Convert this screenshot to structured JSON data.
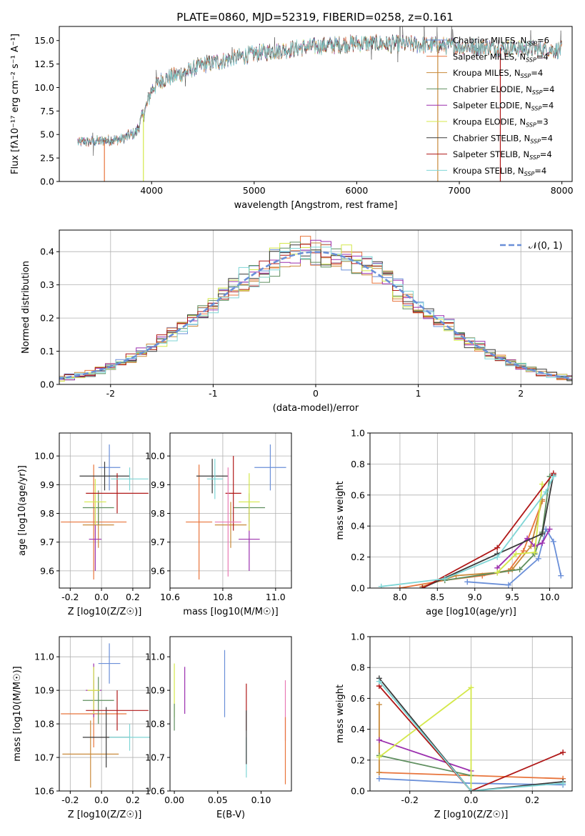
{
  "figure_title": "PLATE=0860, MJD=52319, FIBERID=0258, z=0.161",
  "colors": {
    "Chabrier MILES": "#6a8fd8",
    "Salpeter MILES": "#e8743b",
    "Kroupa MILES": "#c98a3a",
    "Chabrier ELODIE": "#5f8f5f",
    "Salpeter ELODIE": "#9b2fae",
    "Kroupa ELODIE": "#d4e84a",
    "Chabrier STELIB": "#3a3a3a",
    "Salpeter STELIB": "#b01818",
    "Kroupa STELIB": "#7fd6d6",
    "pink": "#e87ab4",
    "grey": "#888888"
  },
  "chart_data": [
    {
      "type": "line",
      "title": "PLATE=0860, MJD=52319, FIBERID=0258, z=0.161",
      "xlabel": "wavelength [Angstrom, rest frame]",
      "ylabel": "Flux [fλ10⁻¹⁷ erg cm⁻² s⁻¹ A⁻¹]",
      "xlim": [
        3100,
        8100
      ],
      "ylim": [
        0,
        16.5
      ],
      "xticks": [
        4000,
        5000,
        6000,
        7000,
        8000
      ],
      "yticks": [
        0.0,
        2.5,
        5.0,
        7.5,
        10.0,
        12.5,
        15.0
      ],
      "legend_position": "right",
      "legend": [
        "Chabrier MILES, N_SSP=6",
        "Salpeter MILES, N_SSP=4",
        "Kroupa MILES, N_SSP=4",
        "Chabrier ELODIE, N_SSP=4",
        "Salpeter ELODIE, N_SSP=4",
        "Kroupa ELODIE, N_SSP=3",
        "Chabrier STELIB, N_SSP=4",
        "Salpeter STELIB, N_SSP=4",
        "Kroupa STELIB, N_SSP=4"
      ],
      "continuum": {
        "x": [
          3300,
          3500,
          3700,
          3850,
          3950,
          4000,
          4100,
          4300,
          4500,
          5000,
          5500,
          6000,
          6500,
          7000,
          7500,
          8000
        ],
        "y": [
          4.2,
          4.3,
          4.5,
          5.2,
          8.0,
          9.8,
          10.8,
          11.5,
          12.4,
          13.6,
          14.3,
          14.7,
          14.6,
          14.4,
          14.2,
          14.0
        ]
      },
      "cutoffs": [
        {
          "series": "Salpeter MILES",
          "x": 3540
        },
        {
          "series": "Kroupa ELODIE",
          "x": 3920
        },
        {
          "series": "Kroupa MILES",
          "x": 6790
        },
        {
          "series": "Salpeter STELIB",
          "x": 7400
        }
      ]
    },
    {
      "type": "histogram",
      "xlabel": "(data-model)/error",
      "ylabel": "Normed distribution",
      "xlim": [
        -2.5,
        2.5
      ],
      "ylim": [
        0,
        0.465
      ],
      "xticks": [
        -2,
        -1,
        0,
        1,
        2
      ],
      "yticks": [
        0.0,
        0.1,
        0.2,
        0.3,
        0.4
      ],
      "grid": true,
      "legend_position": "top-right",
      "legend": [
        "𝒩(0, 1)"
      ],
      "bin_width": 0.1
    },
    {
      "type": "scatter",
      "xlabel": "Z [log10(Z/Z☉)]",
      "ylabel": "age  [log10(age/yr)]",
      "xlim": [
        -0.27,
        0.31
      ],
      "ylim": [
        9.54,
        10.08
      ],
      "xticks": [
        -0.2,
        0.0,
        0.2
      ],
      "yticks": [
        9.6,
        9.7,
        9.8,
        9.9,
        10.0
      ],
      "grid": true,
      "points": [
        {
          "series": "Chabrier MILES",
          "x": 0.05,
          "y": 9.96,
          "xerr": 0.07,
          "yerr": 0.08
        },
        {
          "series": "Salpeter MILES",
          "x": -0.05,
          "y": 9.77,
          "xerr": 0.21,
          "yerr": 0.2
        },
        {
          "series": "Kroupa MILES",
          "x": -0.02,
          "y": 9.76,
          "xerr": 0.1,
          "yerr": 0.08
        },
        {
          "series": "Chabrier ELODIE",
          "x": -0.02,
          "y": 9.82,
          "xerr": 0.1,
          "yerr": 0.06
        },
        {
          "series": "Salpeter ELODIE",
          "x": -0.04,
          "y": 9.71,
          "xerr": 0.04,
          "yerr": 0.11
        },
        {
          "series": "Kroupa ELODIE",
          "x": -0.04,
          "y": 9.84,
          "xerr": 0.07,
          "yerr": 0.08
        },
        {
          "series": "Chabrier STELIB",
          "x": 0.02,
          "y": 9.93,
          "xerr": 0.16,
          "yerr": 0.05
        },
        {
          "series": "Salpeter STELIB",
          "x": 0.1,
          "y": 9.87,
          "xerr": 0.2,
          "yerr": 0.07
        },
        {
          "series": "Kroupa STELIB",
          "x": 0.18,
          "y": 9.92,
          "xerr": 0.12,
          "yerr": 0.04
        }
      ]
    },
    {
      "type": "scatter",
      "xlabel": "mass [log10(M/M☉)]",
      "ylabel": "",
      "xlim": [
        10.6,
        11.06
      ],
      "ylim": [
        9.54,
        10.08
      ],
      "xticks": [
        10.6,
        10.8,
        11.0
      ],
      "yticks": [
        9.6,
        9.7,
        9.8,
        9.9,
        10.0
      ],
      "grid": true,
      "points": [
        {
          "series": "Chabrier MILES",
          "x": 10.98,
          "y": 9.96,
          "xerr": 0.06,
          "yerr": 0.08
        },
        {
          "series": "Salpeter MILES",
          "x": 10.71,
          "y": 9.77,
          "xerr": 0.05,
          "yerr": 0.2
        },
        {
          "series": "Kroupa MILES",
          "x": 10.83,
          "y": 9.76,
          "xerr": 0.06,
          "yerr": 0.08
        },
        {
          "series": "Chabrier ELODIE",
          "x": 10.9,
          "y": 9.82,
          "xerr": 0.06,
          "yerr": 0.05
        },
        {
          "series": "Salpeter ELODIE",
          "x": 10.9,
          "y": 9.71,
          "xerr": 0.04,
          "yerr": 0.11
        },
        {
          "series": "Kroupa ELODIE",
          "x": 10.9,
          "y": 9.84,
          "xerr": 0.04,
          "yerr": 0.1
        },
        {
          "series": "Chabrier STELIB",
          "x": 10.76,
          "y": 9.93,
          "xerr": 0.06,
          "yerr": 0.06
        },
        {
          "series": "Salpeter STELIB",
          "x": 10.84,
          "y": 9.87,
          "xerr": 0.03,
          "yerr": 0.13
        },
        {
          "series": "Kroupa STELIB",
          "x": 10.77,
          "y": 9.92,
          "xerr": 0.03,
          "yerr": 0.07
        },
        {
          "series": "pink",
          "x": 10.82,
          "y": 9.77,
          "xerr": 0.05,
          "yerr": 0.19
        }
      ]
    },
    {
      "type": "line",
      "xlabel": "age  [log10(age/yr)]",
      "ylabel": "mass weight",
      "xlim": [
        7.6,
        10.3
      ],
      "ylim": [
        0,
        1
      ],
      "xticks": [
        8.0,
        8.5,
        9.0,
        9.5,
        10.0
      ],
      "yticks": [
        0.0,
        0.2,
        0.4,
        0.6,
        0.8,
        1.0
      ],
      "grid": true,
      "series": [
        {
          "name": "Chabrier MILES",
          "x": [
            8.9,
            9.45,
            9.85,
            9.95,
            10.05,
            10.15
          ],
          "y": [
            0.04,
            0.02,
            0.19,
            0.38,
            0.3,
            0.08
          ]
        },
        {
          "name": "Salpeter MILES",
          "x": [
            8.0,
            8.6,
            9.1,
            9.45,
            9.65,
            9.9
          ],
          "y": [
            0.0,
            0.05,
            0.08,
            0.11,
            0.24,
            0.56
          ]
        },
        {
          "name": "Kroupa MILES",
          "x": [
            8.3,
            8.75,
            9.3,
            9.5,
            9.75,
            9.9
          ],
          "y": [
            0.01,
            0.08,
            0.1,
            0.12,
            0.27,
            0.57
          ]
        },
        {
          "name": "Chabrier ELODIE",
          "x": [
            8.6,
            9.3,
            9.6,
            9.8,
            9.9,
            10.0
          ],
          "y": [
            0.05,
            0.1,
            0.12,
            0.22,
            0.36,
            0.72
          ]
        },
        {
          "name": "Salpeter ELODIE",
          "x": [
            9.3,
            9.7,
            9.8,
            9.9,
            10.0
          ],
          "y": [
            0.13,
            0.32,
            0.27,
            0.29,
            0.38
          ]
        },
        {
          "name": "Kroupa ELODIE",
          "x": [
            9.3,
            9.55,
            9.8,
            9.9
          ],
          "y": [
            0.1,
            0.22,
            0.23,
            0.67
          ]
        },
        {
          "name": "Chabrier STELIB",
          "x": [
            8.3,
            9.3,
            9.9,
            10.05
          ],
          "y": [
            0.0,
            0.22,
            0.35,
            0.73
          ]
        },
        {
          "name": "Salpeter STELIB",
          "x": [
            8.3,
            9.3,
            10.05
          ],
          "y": [
            0.0,
            0.26,
            0.74
          ]
        },
        {
          "name": "Kroupa STELIB",
          "x": [
            7.75,
            8.6,
            9.3,
            9.95,
            10.05
          ],
          "y": [
            0.01,
            0.06,
            0.2,
            0.62,
            0.72
          ]
        }
      ]
    },
    {
      "type": "scatter",
      "xlabel": "Z [log10(Z/Z☉)]",
      "ylabel": "mass [log10(M/M☉)]",
      "xlim": [
        -0.27,
        0.31
      ],
      "ylim": [
        10.6,
        11.06
      ],
      "xticks": [
        -0.2,
        0.0,
        0.2
      ],
      "yticks": [
        10.6,
        10.7,
        10.8,
        10.9,
        11.0
      ],
      "grid": true,
      "points": [
        {
          "series": "Chabrier MILES",
          "x": 0.05,
          "y": 10.98,
          "xerr": 0.07,
          "yerr": 0.06
        },
        {
          "series": "Salpeter MILES",
          "x": -0.05,
          "y": 10.83,
          "xerr": 0.21,
          "yerr": 0.1
        },
        {
          "series": "Kroupa MILES",
          "x": -0.07,
          "y": 10.71,
          "xerr": 0.18,
          "yerr": 0.1
        },
        {
          "series": "Chabrier ELODIE",
          "x": -0.02,
          "y": 10.87,
          "xerr": 0.1,
          "yerr": 0.07
        },
        {
          "series": "Salpeter ELODIE",
          "x": -0.05,
          "y": 10.9,
          "xerr": 0.05,
          "yerr": 0.08
        },
        {
          "series": "Kroupa ELODIE",
          "x": -0.05,
          "y": 10.9,
          "xerr": 0.04,
          "yerr": 0.07
        },
        {
          "series": "Chabrier STELIB",
          "x": 0.03,
          "y": 10.76,
          "xerr": 0.15,
          "yerr": 0.09
        },
        {
          "series": "Salpeter STELIB",
          "x": 0.1,
          "y": 10.84,
          "xerr": 0.2,
          "yerr": 0.06
        },
        {
          "series": "Kroupa STELIB",
          "x": 0.18,
          "y": 10.76,
          "xerr": 0.13,
          "yerr": 0.04
        }
      ]
    },
    {
      "type": "scatter",
      "xlabel": "E(B-V)",
      "ylabel": "",
      "xlim": [
        -0.005,
        0.135
      ],
      "ylim": [
        10.6,
        11.06
      ],
      "xticks": [
        0.0,
        0.05,
        0.1
      ],
      "yticks": [
        10.6,
        10.7,
        10.8,
        10.9,
        11.0
      ],
      "grid": false,
      "points": [
        {
          "series": "Kroupa ELODIE",
          "x": 0.0,
          "y": 10.9,
          "yerr": 0.08
        },
        {
          "series": "Chabrier ELODIE",
          "x": 0.0,
          "y": 10.82,
          "yerr": 0.04
        },
        {
          "series": "Salpeter ELODIE",
          "x": 0.012,
          "y": 10.9,
          "yerr": 0.07
        },
        {
          "series": "Chabrier MILES",
          "x": 0.058,
          "y": 10.92,
          "yerr": 0.1
        },
        {
          "series": "Salpeter STELIB",
          "x": 0.083,
          "y": 10.85,
          "yerr": 0.07
        },
        {
          "series": "Kroupa STELIB",
          "x": 0.083,
          "y": 10.7,
          "yerr": 0.06
        },
        {
          "series": "Chabrier STELIB",
          "x": 0.083,
          "y": 10.76,
          "yerr": 0.08
        },
        {
          "series": "pink",
          "x": 0.128,
          "y": 10.84,
          "yerr": 0.09
        },
        {
          "series": "Salpeter MILES",
          "x": 0.128,
          "y": 10.72,
          "yerr": 0.1
        }
      ]
    },
    {
      "type": "line",
      "xlabel": "Z [log10(Z/Z☉)]",
      "ylabel": "mass weight",
      "xlim": [
        -0.33,
        0.33
      ],
      "ylim": [
        0,
        1
      ],
      "xticks": [
        -0.2,
        0.0,
        0.2
      ],
      "yticks": [
        0.0,
        0.2,
        0.4,
        0.6,
        0.8,
        1.0
      ],
      "grid": true,
      "series": [
        {
          "name": "Chabrier MILES",
          "x": [
            -0.3,
            0.0,
            0.3
          ],
          "y": [
            0.08,
            0.05,
            0.04
          ]
        },
        {
          "name": "Salpeter MILES",
          "x": [
            -0.3,
            0.0,
            0.3
          ],
          "y": [
            0.12,
            0.1,
            0.08
          ]
        },
        {
          "name": "Kroupa MILES",
          "x": [
            -0.3,
            -0.3
          ],
          "y": [
            0.56,
            0.12
          ]
        },
        {
          "name": "Chabrier ELODIE",
          "x": [
            -0.3,
            0.0
          ],
          "y": [
            0.23,
            0.1
          ]
        },
        {
          "name": "Salpeter ELODIE",
          "x": [
            -0.3,
            0.0
          ],
          "y": [
            0.33,
            0.13
          ]
        },
        {
          "name": "Kroupa ELODIE",
          "x": [
            -0.3,
            0.0,
            0.0
          ],
          "y": [
            0.22,
            0.67,
            0.0
          ]
        },
        {
          "name": "Chabrier STELIB",
          "x": [
            -0.3,
            0.0,
            0.3
          ],
          "y": [
            0.73,
            0.0,
            0.06
          ]
        },
        {
          "name": "Salpeter STELIB",
          "x": [
            -0.3,
            0.0,
            0.3
          ],
          "y": [
            0.68,
            0.0,
            0.25
          ]
        },
        {
          "name": "Kroupa STELIB",
          "x": [
            -0.3,
            0.0,
            0.3
          ],
          "y": [
            0.71,
            0.0,
            0.05
          ]
        }
      ]
    }
  ]
}
